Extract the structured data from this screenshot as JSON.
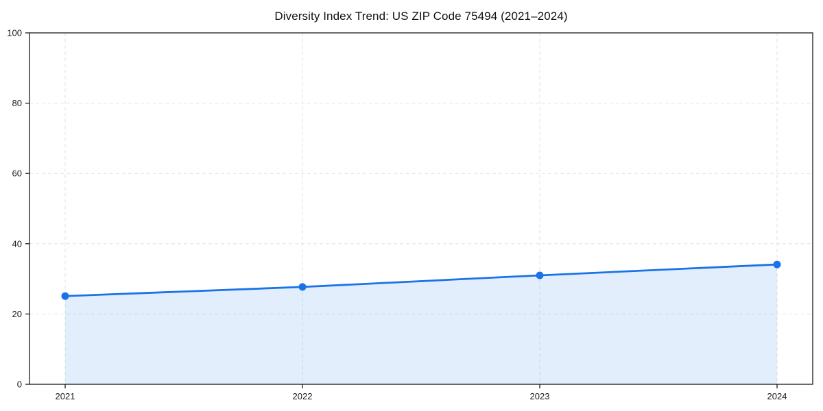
{
  "chart_data": {
    "type": "area",
    "title": "Diversity Index Trend: US ZIP Code 75494 (2021–2024)",
    "x": [
      2021,
      2022,
      2023,
      2024
    ],
    "xticklabels": [
      "2021",
      "2022",
      "2023",
      "2024"
    ],
    "series": [
      {
        "name": "Diversity Index",
        "values": [
          25.1,
          27.7,
          31.0,
          34.1
        ]
      }
    ],
    "xlabel": "",
    "ylabel": "",
    "ylim": [
      0,
      100
    ],
    "yticks": [
      0,
      20,
      40,
      60,
      80,
      100
    ],
    "grid": "on",
    "grid_style": "dashed",
    "legend_position": "none",
    "marker": "circle",
    "colors": {
      "line": "#1a73e8",
      "marker": "#1a73e8",
      "fill": "rgba(26,115,232,0.12)",
      "grid": "#e2e2e2",
      "spine": "#1a1a1a",
      "tick_label": "#1a1a1a",
      "title": "#111111",
      "background": "#ffffff"
    }
  }
}
